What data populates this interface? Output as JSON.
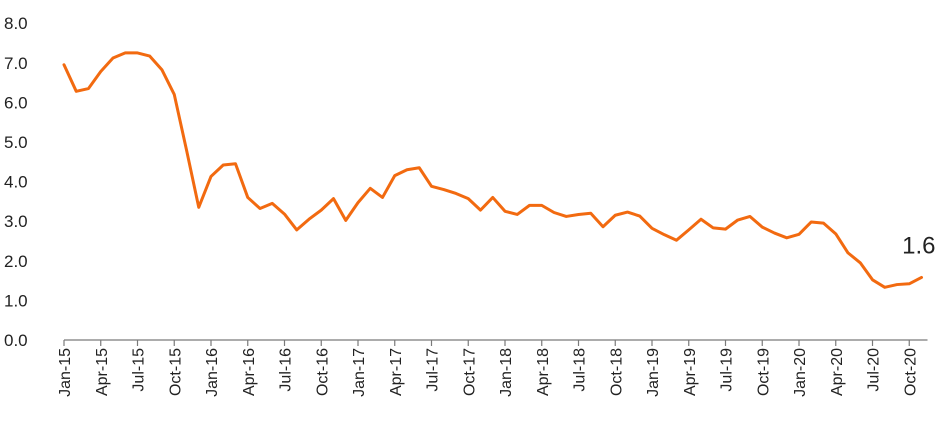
{
  "chart_data": {
    "type": "line",
    "title": "",
    "xlabel": "",
    "ylabel": "",
    "ylim": [
      0,
      8
    ],
    "yticks": [
      "0.0",
      "1.0",
      "2.0",
      "3.0",
      "4.0",
      "5.0",
      "6.0",
      "7.0",
      "8.0"
    ],
    "grid": false,
    "legend": "none",
    "x": [
      "Jan-15",
      "Feb-15",
      "Mar-15",
      "Apr-15",
      "May-15",
      "Jun-15",
      "Jul-15",
      "Aug-15",
      "Sep-15",
      "Oct-15",
      "Nov-15",
      "Dec-15",
      "Jan-16",
      "Feb-16",
      "Mar-16",
      "Apr-16",
      "May-16",
      "Jun-16",
      "Jul-16",
      "Aug-16",
      "Sep-16",
      "Oct-16",
      "Nov-16",
      "Dec-16",
      "Jan-17",
      "Feb-17",
      "Mar-17",
      "Apr-17",
      "May-17",
      "Jun-17",
      "Jul-17",
      "Aug-17",
      "Sep-17",
      "Oct-17",
      "Nov-17",
      "Dec-17",
      "Jan-18",
      "Feb-18",
      "Mar-18",
      "Apr-18",
      "May-18",
      "Jun-18",
      "Jul-18",
      "Aug-18",
      "Sep-18",
      "Oct-18",
      "Nov-18",
      "Dec-18",
      "Jan-19",
      "Feb-19",
      "Mar-19",
      "Apr-19",
      "May-19",
      "Jun-19",
      "Jul-19",
      "Aug-19",
      "Sep-19",
      "Oct-19",
      "Nov-19",
      "Dec-19",
      "Jan-20",
      "Feb-20",
      "Mar-20",
      "Apr-20",
      "May-20",
      "Jun-20",
      "Jul-20",
      "Aug-20",
      "Sep-20",
      "Oct-20",
      "Nov-20"
    ],
    "xtick_labels": [
      "Jan-15",
      "Apr-15",
      "Jul-15",
      "Oct-15",
      "Jan-16",
      "Apr-16",
      "Jul-16",
      "Oct-16",
      "Jan-17",
      "Apr-17",
      "Jul-17",
      "Oct-17",
      "Jan-18",
      "Apr-18",
      "Jul-18",
      "Oct-18",
      "Jan-19",
      "Apr-19",
      "Jul-19",
      "Oct-19",
      "Jan-20",
      "Apr-20",
      "Jul-20",
      "Oct-20"
    ],
    "series": [
      {
        "color": "#f26a10",
        "values": [
          6.95,
          6.28,
          6.35,
          6.78,
          7.12,
          7.25,
          7.25,
          7.17,
          6.82,
          6.2,
          4.8,
          3.35,
          4.13,
          4.42,
          4.45,
          3.6,
          3.32,
          3.45,
          3.18,
          2.78,
          3.05,
          3.28,
          3.57,
          3.02,
          3.47,
          3.83,
          3.6,
          4.15,
          4.3,
          4.35,
          3.88,
          3.8,
          3.7,
          3.57,
          3.28,
          3.6,
          3.25,
          3.17,
          3.4,
          3.4,
          3.22,
          3.12,
          3.17,
          3.2,
          2.86,
          3.15,
          3.23,
          3.13,
          2.82,
          2.66,
          2.52,
          2.78,
          3.05,
          2.83,
          2.8,
          3.03,
          3.12,
          2.85,
          2.7,
          2.58,
          2.67,
          2.98,
          2.95,
          2.68,
          2.2,
          1.95,
          1.52,
          1.33,
          1.4,
          1.42,
          1.58
        ]
      }
    ],
    "annotations": [
      {
        "text": "1.6",
        "x": "Nov-20",
        "y": 1.58
      }
    ]
  }
}
